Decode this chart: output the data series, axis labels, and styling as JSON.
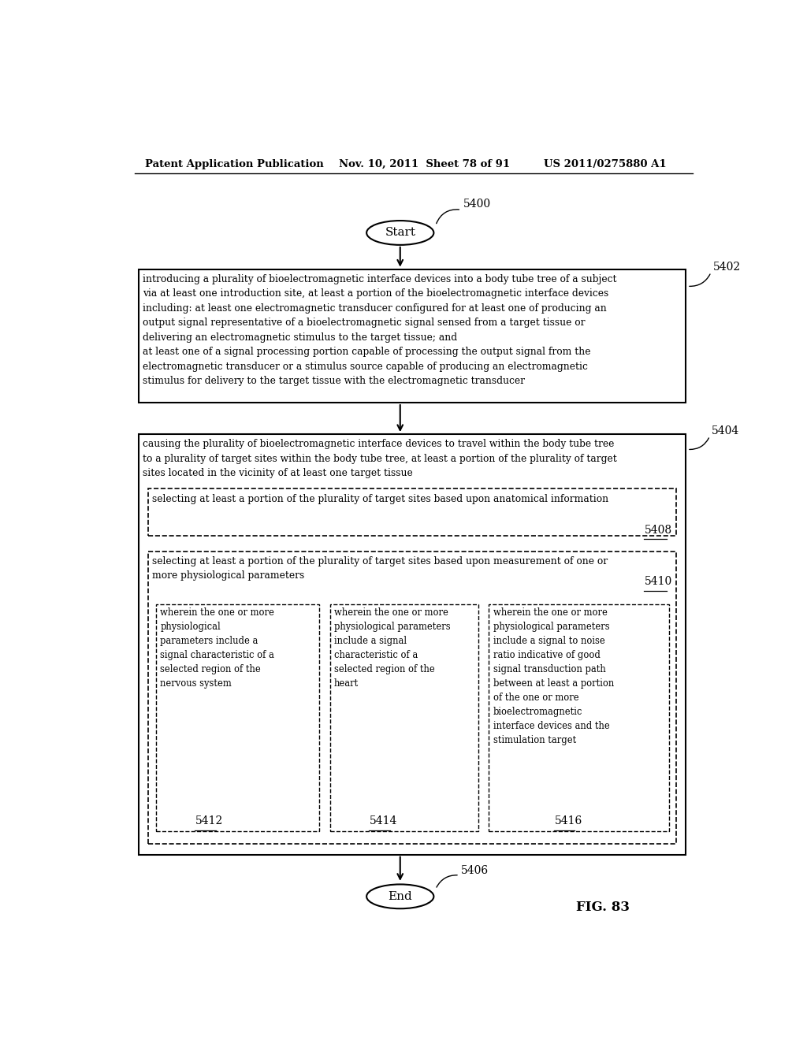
{
  "bg_color": "#ffffff",
  "header_left": "Patent Application Publication",
  "header_center": "Nov. 10, 2011  Sheet 78 of 91",
  "header_right": "US 2011/0275880 A1",
  "fig_label": "FIG. 83",
  "start_label": "Start",
  "start_ref": "5400",
  "end_label": "End",
  "end_ref": "5406",
  "box5402_ref": "5402",
  "box5402_text": "introducing a plurality of bioelectromagnetic interface devices into a body tube tree of a subject\nvia at least one introduction site, at least a portion of the bioelectromagnetic interface devices\nincluding: at least one electromagnetic transducer configured for at least one of producing an\noutput signal representative of a bioelectromagnetic signal sensed from a target tissue or\ndelivering an electromagnetic stimulus to the target tissue; and\nat least one of a signal processing portion capable of processing the output signal from the\nelectromagnetic transducer or a stimulus source capable of producing an electromagnetic\nstimulus for delivery to the target tissue with the electromagnetic transducer",
  "box5404_ref": "5404",
  "box5404_text": "causing the plurality of bioelectromagnetic interface devices to travel within the body tube tree\nto a plurality of target sites within the body tube tree, at least a portion of the plurality of target\nsites located in the vicinity of at least one target tissue",
  "box5408_ref": "5408",
  "box5408_text": "selecting at least a portion of the plurality of target sites based upon anatomical information",
  "box5410_ref": "5410",
  "box5410_text": "selecting at least a portion of the plurality of target sites based upon measurement of one or\nmore physiological parameters",
  "box5412_ref": "5412",
  "box5412_text": "wherein the one or more\nphysiological\nparameters include a\nsignal characteristic of a\nselected region of the\nnervous system",
  "box5414_ref": "5414",
  "box5414_text": "wherein the one or more\nphysiological parameters\ninclude a signal\ncharacteristic of a\nselected region of the\nheart",
  "box5416_ref": "5416",
  "box5416_text": "wherein the one or more\nphysiological parameters\ninclude a signal to noise\nratio indicative of good\nsignal transduction path\nbetween at least a portion\nof the one or more\nbioelectromagnetic\ninterface devices and the\nstimulation target"
}
